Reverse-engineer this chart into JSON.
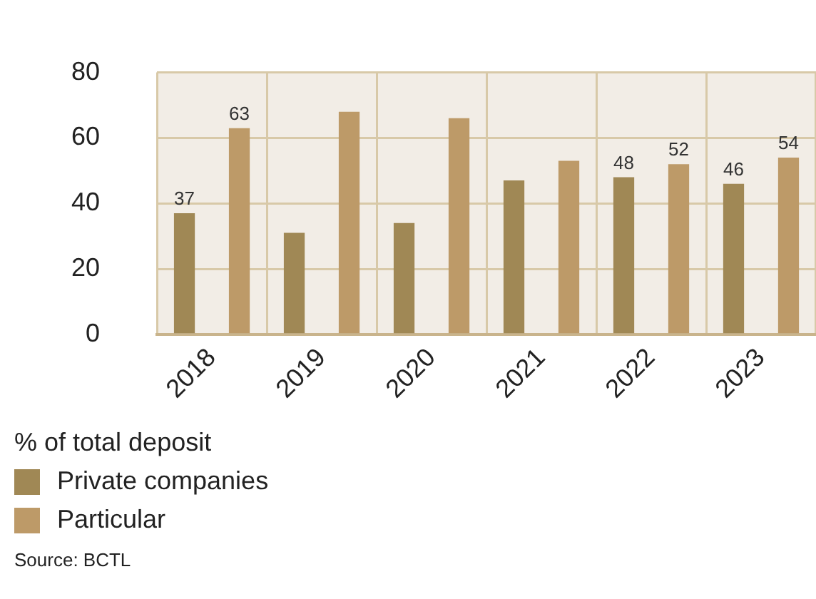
{
  "chart_data": {
    "type": "bar",
    "categories": [
      "2018",
      "2019",
      "2020",
      "2021",
      "2022",
      "2023"
    ],
    "series": [
      {
        "name": "Private companies",
        "color": "#a08855",
        "values": [
          37,
          31,
          34,
          47,
          48,
          46
        ],
        "value_labels": [
          "37",
          null,
          null,
          null,
          "48",
          "46"
        ]
      },
      {
        "name": "Particular",
        "color": "#bd9a68",
        "values": [
          63,
          68,
          66,
          53,
          52,
          54
        ],
        "value_labels": [
          "63",
          null,
          null,
          null,
          "52",
          "54"
        ]
      }
    ],
    "ylim": [
      0,
      80
    ],
    "yticks": [
      0,
      20,
      40,
      60,
      80
    ],
    "grid": true,
    "legend": "bottom",
    "legend_title": "% of total deposit",
    "annotations": [
      "Source: BCTL"
    ]
  }
}
